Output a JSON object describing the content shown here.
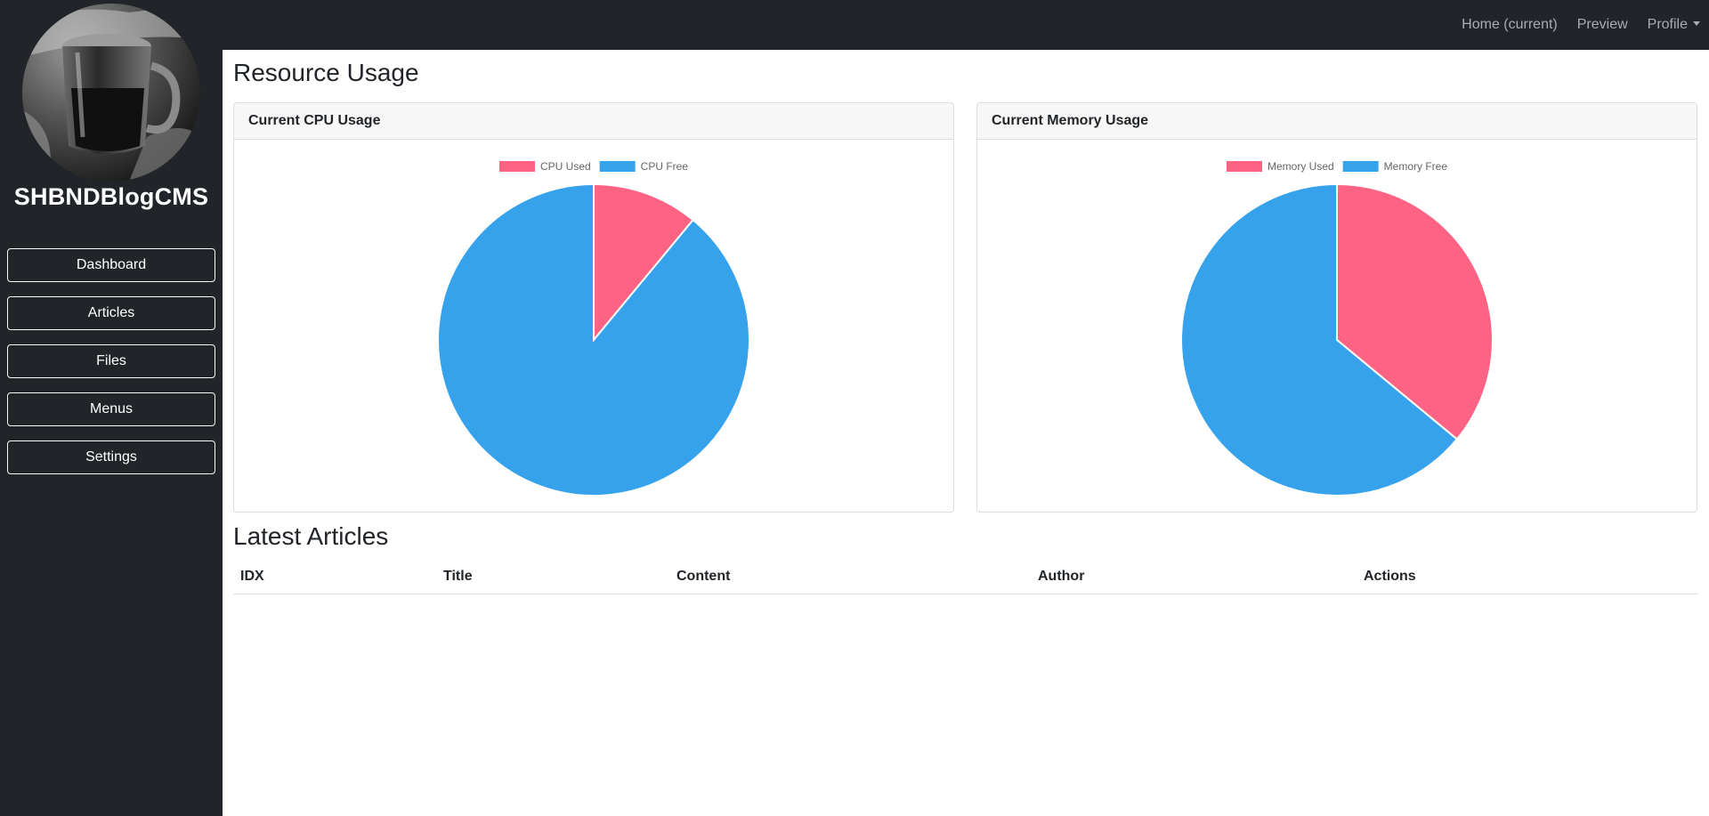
{
  "brand": {
    "name": "SHBNDBlogCMS"
  },
  "topnav": {
    "items": [
      {
        "label": "Home (current)"
      },
      {
        "label": "Preview"
      },
      {
        "label": "Profile"
      }
    ]
  },
  "sidebar": {
    "items": [
      {
        "label": "Dashboard"
      },
      {
        "label": "Articles"
      },
      {
        "label": "Files"
      },
      {
        "label": "Menus"
      },
      {
        "label": "Settings"
      }
    ]
  },
  "main": {
    "title": "Resource Usage",
    "articles_title": "Latest Articles",
    "table": {
      "columns": [
        "IDX",
        "Title",
        "Content",
        "Author",
        "Actions"
      ]
    }
  },
  "colors": {
    "used": "#ff6384",
    "free": "#36a2eb",
    "sidebar_bg": "#212529"
  },
  "chart_data": [
    {
      "type": "pie",
      "title": "Current CPU Usage",
      "categories": [
        "CPU Used",
        "CPU Free"
      ],
      "values": [
        11,
        89
      ],
      "legend": "top"
    },
    {
      "type": "pie",
      "title": "Current Memory Usage",
      "categories": [
        "Memory Used",
        "Memory Free"
      ],
      "values": [
        36,
        64
      ],
      "legend": "top"
    }
  ]
}
